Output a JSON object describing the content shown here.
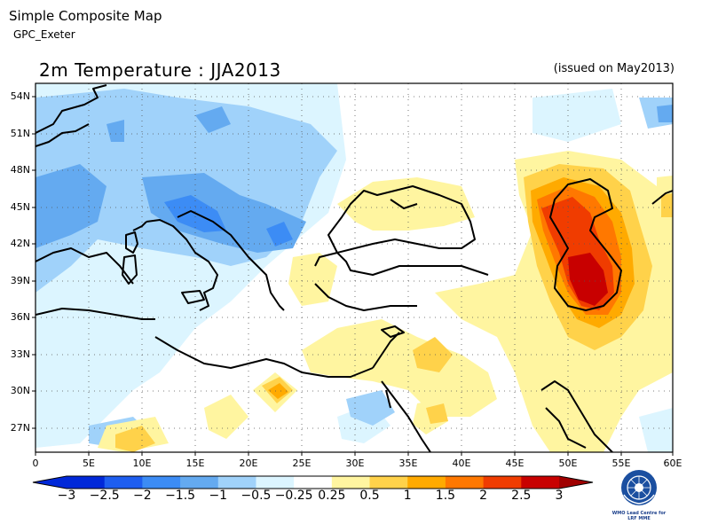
{
  "header": {
    "title": "Simple Composite Map",
    "subtitle": "GPC_Exeter"
  },
  "map": {
    "title": "2m Temperature : JJA2013",
    "issued": "(issued on May2013)",
    "lat_labels": [
      "54N",
      "51N",
      "48N",
      "45N",
      "42N",
      "39N",
      "36N",
      "33N",
      "30N",
      "27N"
    ],
    "lon_labels": [
      "0",
      "5E",
      "10E",
      "15E",
      "20E",
      "25E",
      "30E",
      "35E",
      "40E",
      "45E",
      "50E",
      "55E",
      "60E"
    ]
  },
  "colorbar": {
    "labels": [
      "−3",
      "−2.5",
      "−2",
      "−1.5",
      "−1",
      "−0.5",
      "−0.25",
      "0.25",
      "0.5",
      "1",
      "1.5",
      "2",
      "2.5",
      "3"
    ],
    "colors": [
      "#0028d9",
      "#1e5ef0",
      "#3c8cf5",
      "#64aaf0",
      "#a0d2fa",
      "#dcf5ff",
      "#ffffff",
      "#fff5a0",
      "#ffd24a",
      "#ffaa00",
      "#ff7800",
      "#f03c00",
      "#c80000"
    ]
  },
  "logo": {
    "line1": "WMO Lead Centre for",
    "line2": "LRF MME"
  }
}
